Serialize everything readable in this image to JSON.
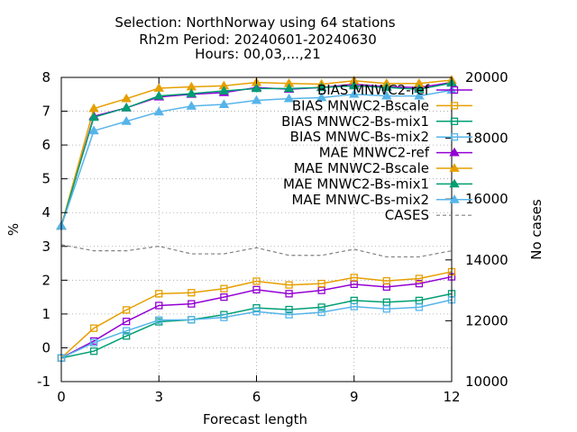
{
  "chart_data": {
    "type": "line",
    "title_lines": [
      "Selection: NorthNorway using    64 stations",
      "Rh2m   Period: 20240601-20240630",
      "Hours: 00,03,...,21"
    ],
    "xlabel": "Forecast length",
    "ylabel": "%",
    "y2label": "No cases",
    "xlim": [
      0,
      12
    ],
    "ylim": [
      -1,
      8
    ],
    "y2lim": [
      10000,
      20000
    ],
    "xticks": [
      0,
      3,
      6,
      9,
      12
    ],
    "yticks": [
      -1,
      0,
      1,
      2,
      3,
      4,
      5,
      6,
      7,
      8
    ],
    "y2ticks": [
      10000,
      12000,
      14000,
      16000,
      18000,
      20000
    ],
    "grid": true,
    "legend_position": "top-right",
    "x": [
      0,
      1,
      2,
      3,
      4,
      5,
      6,
      7,
      8,
      9,
      10,
      11,
      12
    ],
    "series": [
      {
        "name": "BIAS MNWC2-ref",
        "color": "#9400d3",
        "marker": "square",
        "axis": "y",
        "values": [
          -0.3,
          0.2,
          0.78,
          1.25,
          1.3,
          1.5,
          1.72,
          1.6,
          1.7,
          1.88,
          1.8,
          1.9,
          2.1
        ]
      },
      {
        "name": "BIAS MNWC2-Bscale",
        "color": "#e69f00",
        "marker": "square",
        "axis": "y",
        "values": [
          -0.3,
          0.58,
          1.12,
          1.6,
          1.63,
          1.75,
          1.97,
          1.86,
          1.9,
          2.08,
          1.98,
          2.05,
          2.25
        ]
      },
      {
        "name": "BIAS MNWC2-Bs-mix1",
        "color": "#009e73",
        "marker": "square",
        "axis": "y",
        "values": [
          -0.3,
          -0.1,
          0.35,
          0.77,
          0.83,
          0.98,
          1.18,
          1.13,
          1.2,
          1.4,
          1.35,
          1.4,
          1.6
        ]
      },
      {
        "name": "BIAS MNWC-Bs-mix2",
        "color": "#56b4e9",
        "marker": "square",
        "axis": "y",
        "values": [
          -0.3,
          0.15,
          0.5,
          0.82,
          0.83,
          0.9,
          1.07,
          0.98,
          1.05,
          1.22,
          1.15,
          1.2,
          1.42
        ]
      },
      {
        "name": "MAE MNWC2-ref",
        "color": "#9400d3",
        "marker": "triangle",
        "axis": "y",
        "values": [
          3.6,
          6.85,
          7.1,
          7.42,
          7.5,
          7.55,
          7.7,
          7.65,
          7.7,
          7.8,
          7.72,
          7.7,
          7.85
        ]
      },
      {
        "name": "MAE MNWC2-Bscale",
        "color": "#e69f00",
        "marker": "triangle",
        "axis": "y",
        "values": [
          3.6,
          7.08,
          7.37,
          7.68,
          7.72,
          7.75,
          7.85,
          7.82,
          7.8,
          7.9,
          7.82,
          7.82,
          7.92
        ]
      },
      {
        "name": "MAE MNWC2-Bs-mix1",
        "color": "#009e73",
        "marker": "triangle",
        "axis": "y",
        "values": [
          3.6,
          6.82,
          7.1,
          7.45,
          7.52,
          7.6,
          7.67,
          7.67,
          7.7,
          7.75,
          7.7,
          7.65,
          7.83
        ]
      },
      {
        "name": "MAE MNWC-Bs-mix2",
        "color": "#56b4e9",
        "marker": "triangle",
        "axis": "y",
        "values": [
          3.6,
          6.42,
          6.7,
          6.98,
          7.15,
          7.2,
          7.32,
          7.37,
          7.4,
          7.5,
          7.45,
          7.45,
          7.62
        ]
      },
      {
        "name": "CASES",
        "color": "#808080",
        "marker": "none",
        "dashed": true,
        "axis": "y2",
        "values": [
          14500,
          14300,
          14300,
          14450,
          14200,
          14200,
          14400,
          14150,
          14150,
          14350,
          14100,
          14100,
          14300
        ]
      }
    ]
  }
}
